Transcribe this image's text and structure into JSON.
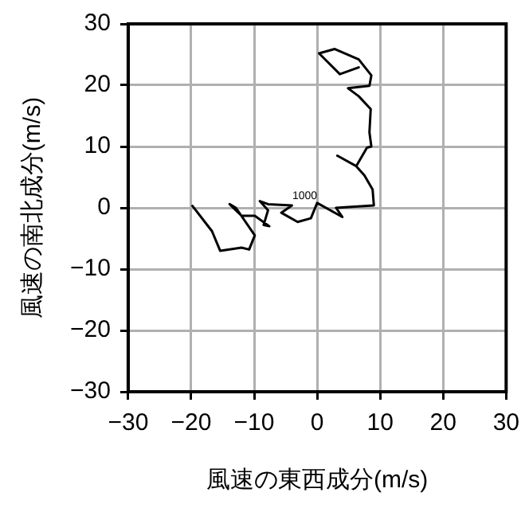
{
  "chart_data": {
    "type": "line",
    "xlabel": "風速の東西成分(m/s)",
    "ylabel": "風速の南北成分(m/s)",
    "xlim": [
      -30,
      30
    ],
    "xticks": [
      -30,
      -20,
      -10,
      0,
      10,
      20,
      30
    ],
    "ylim": [
      -30,
      30
    ],
    "yticks": [
      -30,
      -20,
      -10,
      0,
      10,
      20,
      30
    ],
    "grid": true,
    "legend": false,
    "marker": "none",
    "line_style": "solid",
    "annotations": [
      {
        "text": "1000",
        "x": 0,
        "y": 0.8
      }
    ],
    "series": [
      {
        "color": "#000000",
        "x": [
          -19.8,
          -16.7,
          -15.4,
          -12,
          -10.8,
          -9.9,
          -12.9,
          -13.9,
          -12.9,
          -12,
          -9.9,
          -7.6,
          -8.5,
          -7.8,
          -9.1,
          -7.8,
          -4,
          -5.7,
          -3.1,
          -1,
          0,
          4,
          3,
          9,
          8.8,
          7.5,
          6.2,
          3.2,
          6.2,
          7.9,
          8.6,
          8.3,
          8.5,
          6.6,
          4.9,
          8.3,
          8.6,
          6.6,
          2.8,
          0.3,
          3.6,
          6.6
        ],
        "values": [
          0.3,
          -3.8,
          -7,
          -6.5,
          -6.8,
          -4.5,
          0,
          0.6,
          -0.4,
          -1.3,
          -1.3,
          -3,
          -2.8,
          -0.4,
          1.1,
          0.6,
          0.4,
          -0.8,
          -2.3,
          -1.7,
          0.8,
          -1.5,
          0,
          0.4,
          3,
          5.3,
          6.8,
          8.5,
          6.8,
          9.8,
          10,
          12.3,
          16.1,
          18.2,
          19.5,
          19.9,
          21.6,
          24.2,
          25.9,
          25.2,
          21.8,
          22.9
        ]
      }
    ]
  }
}
